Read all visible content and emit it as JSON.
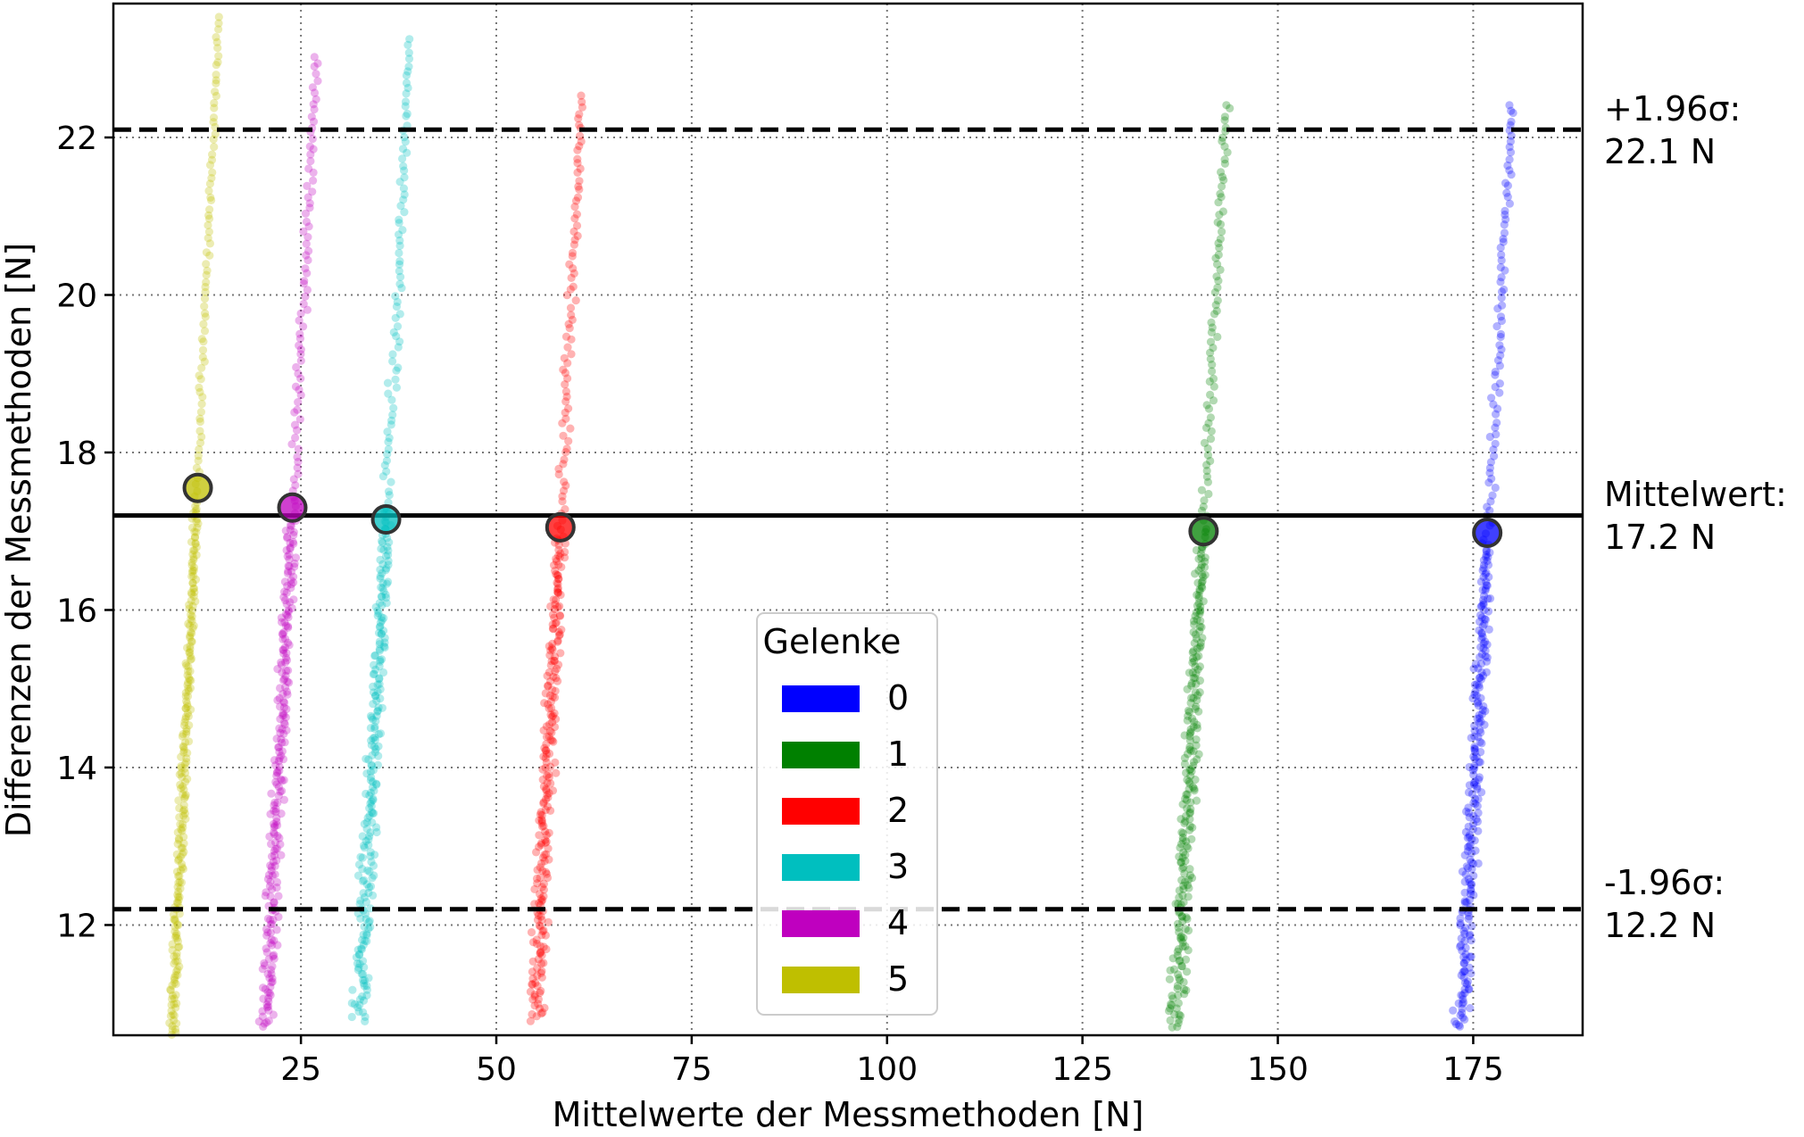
{
  "chart_data": {
    "type": "scatter",
    "title": "",
    "xlabel": "Mittelwerte der Messmethoden [N]",
    "ylabel": "Differenzen der Messmethoden [N]",
    "xlim": [
      1,
      189
    ],
    "ylim": [
      10.6,
      23.7
    ],
    "x_ticks": [
      25,
      50,
      75,
      100,
      125,
      150,
      175
    ],
    "y_ticks": [
      12,
      14,
      16,
      18,
      20,
      22
    ],
    "x_tick_labels": [
      "25",
      "50",
      "75",
      "100",
      "125",
      "150",
      "175"
    ],
    "y_tick_labels": [
      "12",
      "14",
      "16",
      "18",
      "20",
      "22"
    ],
    "grid": true,
    "grid_style": "dotted",
    "reference_lines": [
      {
        "name": "upper_limit",
        "y": 22.1,
        "style": "dashed",
        "label_line1": "+1.96σ:",
        "label_line2": "22.1 N"
      },
      {
        "name": "mean",
        "y": 17.2,
        "style": "solid",
        "label_line1": "Mittelwert:",
        "label_line2": "17.2 N"
      },
      {
        "name": "lower_limit",
        "y": 12.2,
        "style": "dashed",
        "label_line1": "-1.96σ:",
        "label_line2": "12.2 N"
      }
    ],
    "legend": {
      "title": "Gelenke",
      "placement": "lower center",
      "entries": [
        {
          "label": "0",
          "color": "#0000ff"
        },
        {
          "label": "1",
          "color": "#008000"
        },
        {
          "label": "2",
          "color": "#ff0000"
        },
        {
          "label": "3",
          "color": "#00bfbf"
        },
        {
          "label": "4",
          "color": "#bf00bf"
        },
        {
          "label": "5",
          "color": "#bfbf00"
        }
      ]
    },
    "series": [
      {
        "label": "5",
        "color": "#bfbf00",
        "x_low": 8.5,
        "y_low": 10.6,
        "x_high": 14.5,
        "y_high": 23.6,
        "spread": 0.7,
        "mean_point": {
          "x": 11.8,
          "y": 17.55
        }
      },
      {
        "label": "4",
        "color": "#bf00bf",
        "x_low": 20.5,
        "y_low": 10.7,
        "x_high": 27.0,
        "y_high": 23.1,
        "spread": 1.2,
        "mean_point": {
          "x": 23.9,
          "y": 17.3
        }
      },
      {
        "label": "3",
        "color": "#00bfbf",
        "x_low": 32.5,
        "y_low": 10.8,
        "x_high": 39.0,
        "y_high": 23.3,
        "spread": 1.3,
        "mean_point": {
          "x": 35.9,
          "y": 17.15
        }
      },
      {
        "label": "2",
        "color": "#ff0000",
        "x_low": 55.0,
        "y_low": 10.8,
        "x_high": 61.0,
        "y_high": 22.6,
        "spread": 1.4,
        "mean_point": {
          "x": 58.2,
          "y": 17.05
        }
      },
      {
        "label": "1",
        "color": "#008000",
        "x_low": 137.0,
        "y_low": 10.7,
        "x_high": 143.5,
        "y_high": 22.5,
        "spread": 1.3,
        "mean_point": {
          "x": 140.5,
          "y": 17.0
        }
      },
      {
        "label": "0",
        "color": "#0000ff",
        "x_low": 173.5,
        "y_low": 10.7,
        "x_high": 180.0,
        "y_high": 22.5,
        "spread": 1.3,
        "mean_point": {
          "x": 176.8,
          "y": 16.98
        }
      }
    ]
  }
}
